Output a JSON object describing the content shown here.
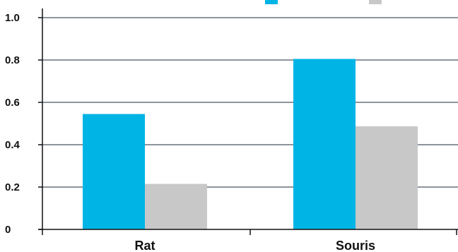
{
  "chart_data": {
    "type": "bar",
    "categories": [
      "Rat",
      "Souris"
    ],
    "series": [
      {
        "color": "#00B4E6",
        "values": [
          0.545,
          0.805
        ]
      },
      {
        "color": "#C8C8C8",
        "values": [
          0.215,
          0.487
        ]
      }
    ],
    "ylim": [
      0,
      1.0
    ],
    "yticks": [
      {
        "value": 0,
        "label": "0"
      },
      {
        "value": 0.2,
        "label": "0.2"
      },
      {
        "value": 0.4,
        "label": "0.4"
      },
      {
        "value": 0.6,
        "label": "0.6"
      },
      {
        "value": 0.8,
        "label": "0.8"
      },
      {
        "value": 1.0,
        "label": "1.0"
      }
    ],
    "grid": true,
    "axis_color": "#111111",
    "grid_color": "#1b2a3a"
  }
}
